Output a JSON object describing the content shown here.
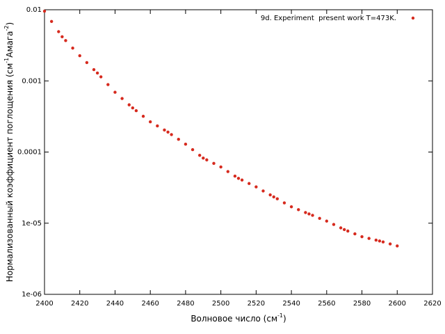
{
  "chart_data": {
    "type": "scatter",
    "xlabel": [
      "Волновое число (см",
      "-1",
      ")"
    ],
    "ylabel": [
      "Нормализованный коэффициент поглощения (см",
      "-1",
      "Амага",
      "-2",
      ")"
    ],
    "xlim": [
      2400,
      2620
    ],
    "xticks": [
      2400,
      2420,
      2440,
      2460,
      2480,
      2500,
      2520,
      2540,
      2560,
      2580,
      2600,
      2620
    ],
    "ylim": [
      1e-06,
      0.01
    ],
    "yticks": [
      {
        "value": 1e-06,
        "label": "1e-06"
      },
      {
        "value": 1e-05,
        "label": "1e-05"
      },
      0.0001,
      0.001,
      0.01
    ],
    "log_y": true,
    "legend": "top right",
    "series": [
      {
        "name": "9d. Experiment  present work T=473K.",
        "color": "#d62a1e",
        "x": [
          2400,
          2404,
          2408,
          2410,
          2412,
          2416,
          2420,
          2424,
          2428,
          2430,
          2432,
          2436,
          2440,
          2444,
          2448,
          2450,
          2452,
          2456,
          2460,
          2464,
          2468,
          2470,
          2472,
          2476,
          2480,
          2484,
          2488,
          2490,
          2492,
          2496,
          2500,
          2504,
          2508,
          2510,
          2512,
          2516,
          2520,
          2524,
          2528,
          2530,
          2532,
          2536,
          2540,
          2544,
          2548,
          2550,
          2552,
          2556,
          2560,
          2564,
          2568,
          2570,
          2572,
          2576,
          2580,
          2584,
          2588,
          2590,
          2592,
          2596,
          2600
        ],
        "values": [
          0.00955,
          0.00685,
          0.00492,
          0.00417,
          0.00369,
          0.00289,
          0.00226,
          0.00181,
          0.00144,
          0.00129,
          0.00114,
          0.000887,
          0.000692,
          0.000565,
          0.000461,
          0.000417,
          0.000381,
          0.000318,
          0.000266,
          0.000233,
          0.000204,
          0.000191,
          0.000176,
          0.000151,
          0.000129,
          0.000108,
          8.99e-05,
          8.22e-05,
          7.76e-05,
          6.92e-05,
          6.17e-05,
          5.32e-05,
          4.59e-05,
          4.27e-05,
          4.04e-05,
          3.61e-05,
          3.24e-05,
          2.84e-05,
          2.5e-05,
          2.34e-05,
          2.2e-05,
          1.93e-05,
          1.7e-05,
          1.55e-05,
          1.41e-05,
          1.35e-05,
          1.29e-05,
          1.17e-05,
          1.07e-05,
          9.59e-06,
          8.59e-06,
          8.13e-06,
          7.76e-06,
          7.08e-06,
          6.46e-06,
          6.11e-06,
          5.78e-06,
          5.62e-06,
          5.45e-06,
          5.11e-06,
          4.79e-06
        ]
      }
    ]
  }
}
